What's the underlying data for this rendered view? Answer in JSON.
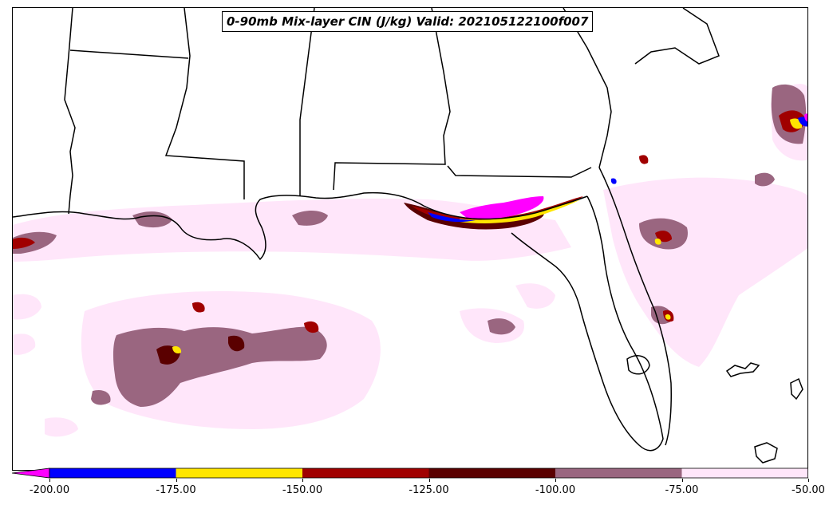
{
  "map": {
    "title": "0-90mb Mix-layer CIN (J/kg) Valid: 202105122100f007"
  },
  "colorbar": {
    "levels": [
      "-200.00",
      "-175.00",
      "-150.00",
      "-125.00",
      "-100.00",
      "-75.00",
      "-50.00"
    ],
    "extend": "min",
    "colors": {
      "below_min": "#ff00ff",
      "bin_200_175": "#0000ff",
      "bin_175_150": "#ffe600",
      "bin_150_125": "#a00000",
      "bin_125_100": "#5a0000",
      "bin_100_75": "#9a6680",
      "bin_75_50": "#ffe6fa"
    }
  }
}
